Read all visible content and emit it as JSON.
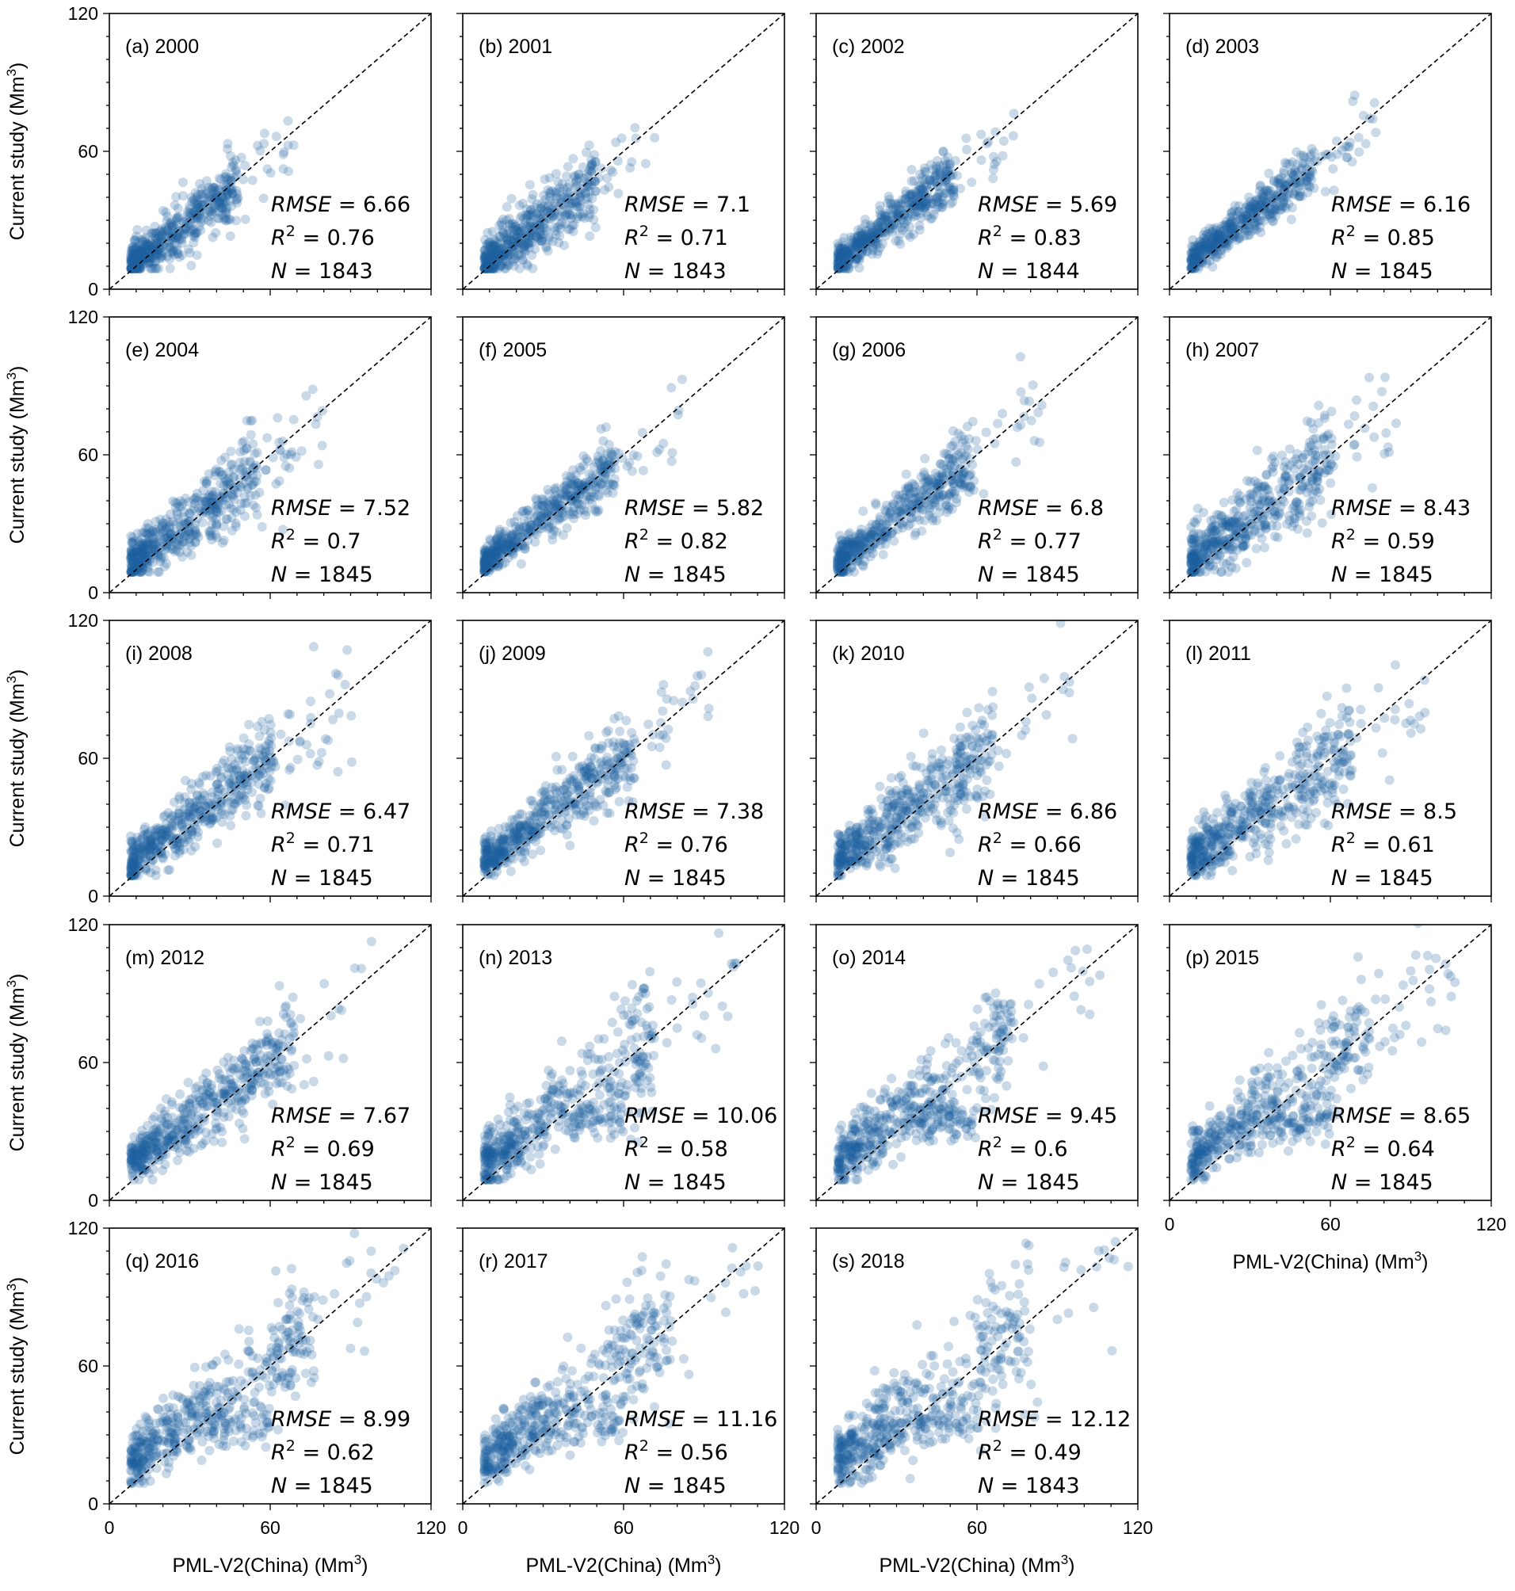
{
  "figure": {
    "x_label": "PML-V2(China) (Mm",
    "y_label": "Current study (Mm",
    "unit_superscript": "3",
    "axis_ticks": [
      "0",
      "60",
      "120"
    ],
    "stat_labels": {
      "rmse": "RMSE",
      "r": "R",
      "r_sup": "2",
      "n": "N",
      "eq": " = "
    },
    "point_color": "#1f5f9e"
  },
  "chart_data": [
    {
      "type": "scatter",
      "label": "(a) 2000",
      "year": 2000,
      "xlim": [
        0,
        120
      ],
      "ylim": [
        0,
        120
      ],
      "rmse": "6.66",
      "r2": "0.76",
      "n": "1843"
    },
    {
      "type": "scatter",
      "label": "(b) 2001",
      "year": 2001,
      "xlim": [
        0,
        120
      ],
      "ylim": [
        0,
        120
      ],
      "rmse": "7.1",
      "r2": "0.71",
      "n": "1843"
    },
    {
      "type": "scatter",
      "label": "(c) 2002",
      "year": 2002,
      "xlim": [
        0,
        120
      ],
      "ylim": [
        0,
        120
      ],
      "rmse": "5.69",
      "r2": "0.83",
      "n": "1844"
    },
    {
      "type": "scatter",
      "label": "(d) 2003",
      "year": 2003,
      "xlim": [
        0,
        120
      ],
      "ylim": [
        0,
        120
      ],
      "rmse": "6.16",
      "r2": "0.85",
      "n": "1845"
    },
    {
      "type": "scatter",
      "label": "(e) 2004",
      "year": 2004,
      "xlim": [
        0,
        120
      ],
      "ylim": [
        0,
        120
      ],
      "rmse": "7.52",
      "r2": "0.7",
      "n": "1845"
    },
    {
      "type": "scatter",
      "label": "(f) 2005",
      "year": 2005,
      "xlim": [
        0,
        120
      ],
      "ylim": [
        0,
        120
      ],
      "rmse": "5.82",
      "r2": "0.82",
      "n": "1845"
    },
    {
      "type": "scatter",
      "label": "(g) 2006",
      "year": 2006,
      "xlim": [
        0,
        120
      ],
      "ylim": [
        0,
        120
      ],
      "rmse": "6.8",
      "r2": "0.77",
      "n": "1845"
    },
    {
      "type": "scatter",
      "label": "(h) 2007",
      "year": 2007,
      "xlim": [
        0,
        120
      ],
      "ylim": [
        0,
        120
      ],
      "rmse": "8.43",
      "r2": "0.59",
      "n": "1845"
    },
    {
      "type": "scatter",
      "label": "(i) 2008",
      "year": 2008,
      "xlim": [
        0,
        120
      ],
      "ylim": [
        0,
        120
      ],
      "rmse": "6.47",
      "r2": "0.71",
      "n": "1845"
    },
    {
      "type": "scatter",
      "label": "(j) 2009",
      "year": 2009,
      "xlim": [
        0,
        120
      ],
      "ylim": [
        0,
        120
      ],
      "rmse": "7.38",
      "r2": "0.76",
      "n": "1845"
    },
    {
      "type": "scatter",
      "label": "(k) 2010",
      "year": 2010,
      "xlim": [
        0,
        120
      ],
      "ylim": [
        0,
        120
      ],
      "rmse": "6.86",
      "r2": "0.66",
      "n": "1845"
    },
    {
      "type": "scatter",
      "label": "(l) 2011",
      "year": 2011,
      "xlim": [
        0,
        120
      ],
      "ylim": [
        0,
        120
      ],
      "rmse": "8.5",
      "r2": "0.61",
      "n": "1845"
    },
    {
      "type": "scatter",
      "label": "(m) 2012",
      "year": 2012,
      "xlim": [
        0,
        120
      ],
      "ylim": [
        0,
        120
      ],
      "rmse": "7.67",
      "r2": "0.69",
      "n": "1845"
    },
    {
      "type": "scatter",
      "label": "(n) 2013",
      "year": 2013,
      "xlim": [
        0,
        120
      ],
      "ylim": [
        0,
        120
      ],
      "rmse": "10.06",
      "r2": "0.58",
      "n": "1845"
    },
    {
      "type": "scatter",
      "label": "(o) 2014",
      "year": 2014,
      "xlim": [
        0,
        120
      ],
      "ylim": [
        0,
        120
      ],
      "rmse": "9.45",
      "r2": "0.6",
      "n": "1845"
    },
    {
      "type": "scatter",
      "label": "(p) 2015",
      "year": 2015,
      "xlim": [
        0,
        120
      ],
      "ylim": [
        0,
        120
      ],
      "rmse": "8.65",
      "r2": "0.64",
      "n": "1845"
    },
    {
      "type": "scatter",
      "label": "(q) 2016",
      "year": 2016,
      "xlim": [
        0,
        120
      ],
      "ylim": [
        0,
        120
      ],
      "rmse": "8.99",
      "r2": "0.62",
      "n": "1845"
    },
    {
      "type": "scatter",
      "label": "(r) 2017",
      "year": 2017,
      "xlim": [
        0,
        120
      ],
      "ylim": [
        0,
        120
      ],
      "rmse": "11.16",
      "r2": "0.56",
      "n": "1845"
    },
    {
      "type": "scatter",
      "label": "(s) 2018",
      "year": 2018,
      "xlim": [
        0,
        120
      ],
      "ylim": [
        0,
        120
      ],
      "rmse": "12.12",
      "r2": "0.49",
      "n": "1843"
    }
  ]
}
